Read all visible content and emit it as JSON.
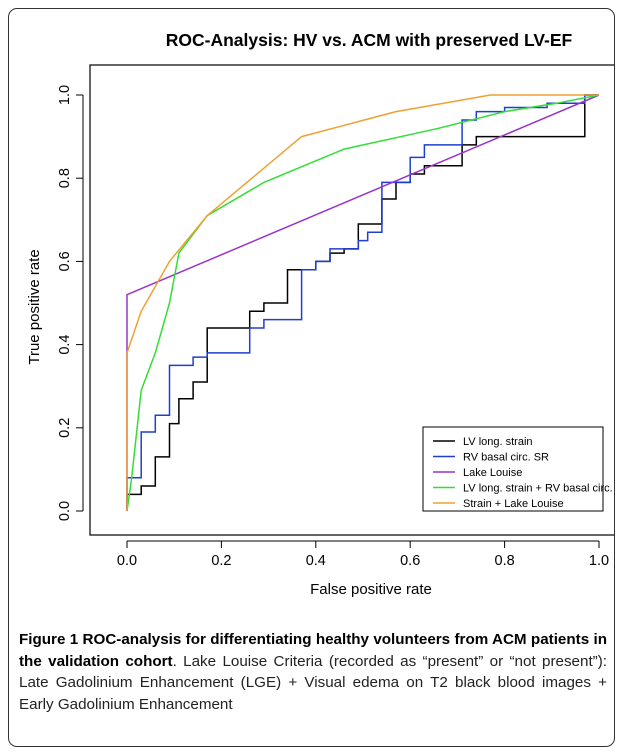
{
  "chart_data": {
    "type": "line",
    "title": "ROC-Analysis: HV vs. ACM with preserved LV-EF",
    "xlabel": "False positive rate",
    "ylabel": "True positive rate",
    "xlim": [
      0,
      1
    ],
    "ylim": [
      0,
      1
    ],
    "xticks": [
      "0.0",
      "0.2",
      "0.4",
      "0.6",
      "0.8",
      "1.0"
    ],
    "yticks": [
      "0.0",
      "0.2",
      "0.4",
      "0.6",
      "0.8",
      "1.0"
    ],
    "grid": false,
    "legend_position": "bottom-right",
    "series": [
      {
        "name": "LV long. strain",
        "color": "#000000",
        "step": true,
        "x": [
          0,
          0,
          0.03,
          0.03,
          0.06,
          0.06,
          0.09,
          0.09,
          0.11,
          0.11,
          0.14,
          0.14,
          0.17,
          0.17,
          0.26,
          0.26,
          0.29,
          0.29,
          0.34,
          0.34,
          0.37,
          0.37,
          0.4,
          0.4,
          0.43,
          0.43,
          0.46,
          0.46,
          0.49,
          0.49,
          0.54,
          0.54,
          0.57,
          0.57,
          0.6,
          0.6,
          0.63,
          0.63,
          0.66,
          0.66,
          0.71,
          0.71,
          0.74,
          0.74,
          0.77,
          0.77,
          0.97,
          0.97,
          1.0
        ],
        "y": [
          0,
          0.04,
          0.04,
          0.06,
          0.06,
          0.13,
          0.13,
          0.21,
          0.21,
          0.27,
          0.27,
          0.31,
          0.31,
          0.44,
          0.44,
          0.48,
          0.48,
          0.5,
          0.5,
          0.58,
          0.58,
          0.58,
          0.58,
          0.6,
          0.6,
          0.62,
          0.62,
          0.63,
          0.63,
          0.69,
          0.69,
          0.75,
          0.75,
          0.79,
          0.79,
          0.81,
          0.81,
          0.83,
          0.83,
          0.83,
          0.83,
          0.88,
          0.88,
          0.9,
          0.9,
          0.9,
          0.9,
          1.0,
          1.0
        ]
      },
      {
        "name": "RV basal circ. SR",
        "color": "#1f3fcf",
        "step": true,
        "x": [
          0,
          0,
          0.03,
          0.03,
          0.06,
          0.06,
          0.09,
          0.09,
          0.14,
          0.14,
          0.17,
          0.17,
          0.26,
          0.26,
          0.29,
          0.29,
          0.37,
          0.37,
          0.4,
          0.4,
          0.43,
          0.43,
          0.49,
          0.49,
          0.51,
          0.51,
          0.54,
          0.54,
          0.6,
          0.6,
          0.63,
          0.63,
          0.71,
          0.71,
          0.74,
          0.74,
          0.8,
          0.8,
          0.89,
          0.89,
          0.97,
          0.97,
          1.0
        ],
        "y": [
          0,
          0.08,
          0.08,
          0.19,
          0.19,
          0.23,
          0.23,
          0.35,
          0.35,
          0.37,
          0.37,
          0.38,
          0.38,
          0.44,
          0.44,
          0.46,
          0.46,
          0.58,
          0.58,
          0.6,
          0.6,
          0.63,
          0.63,
          0.65,
          0.65,
          0.67,
          0.67,
          0.79,
          0.79,
          0.85,
          0.85,
          0.88,
          0.88,
          0.94,
          0.94,
          0.96,
          0.96,
          0.97,
          0.97,
          0.98,
          0.98,
          1.0,
          1.0
        ]
      },
      {
        "name": "Lake Louise",
        "color": "#9933cc",
        "step": false,
        "x": [
          0,
          0,
          1.0
        ],
        "y": [
          0,
          0.52,
          1.0
        ]
      },
      {
        "name": "LV long. strain + RV basal circ. SR",
        "color": "#33dd33",
        "step": false,
        "x": [
          0,
          0.01,
          0.03,
          0.06,
          0.09,
          0.11,
          0.17,
          0.29,
          0.46,
          0.66,
          0.8,
          0.91,
          1.0
        ],
        "y": [
          0,
          0.08,
          0.29,
          0.38,
          0.5,
          0.62,
          0.71,
          0.79,
          0.87,
          0.92,
          0.96,
          0.98,
          1.0
        ]
      },
      {
        "name": "Strain + Lake Louise",
        "color": "#f0a030",
        "step": false,
        "x": [
          0,
          0,
          0.03,
          0.09,
          0.17,
          0.37,
          0.57,
          0.77,
          1.0
        ],
        "y": [
          0,
          0.38,
          0.48,
          0.6,
          0.71,
          0.9,
          0.96,
          1.0,
          1.0
        ]
      }
    ]
  },
  "caption": {
    "label": "Figure 1",
    "title": "ROC-analysis for differentiating healthy volunteers from ACM patients in the validation cohort",
    "text": ". Lake Louise Criteria (recorded as “present” or “not present”): Late Gadolinium Enhancement (LGE) + Visual edema on T2 black blood images + Early Gadolinium Enhancement"
  }
}
